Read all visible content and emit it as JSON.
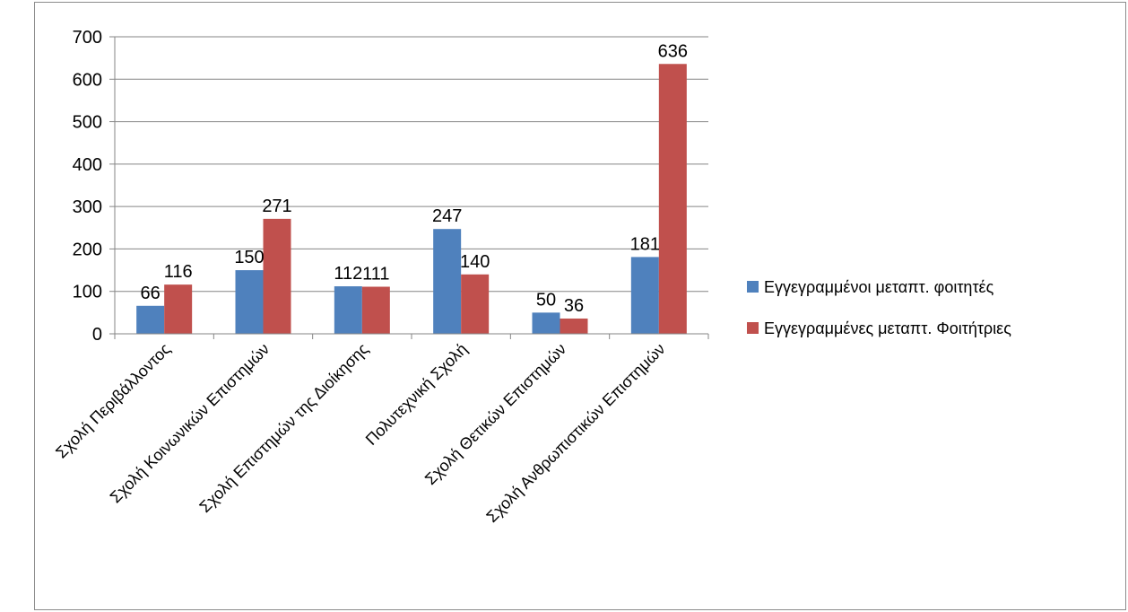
{
  "chart_data": {
    "type": "bar",
    "title": "",
    "xlabel": "",
    "ylabel": "",
    "ylim": [
      0,
      700
    ],
    "yticks": [
      0,
      100,
      200,
      300,
      400,
      500,
      600,
      700
    ],
    "grid": true,
    "legend_position": "right",
    "categories": [
      "Σχολή Περιβάλλοντος",
      "Σχολή Κοινωνικών Επιστημών",
      "Σχολή Επιστημών της Διοίκησης",
      "Πολυτεχνική Σχολή",
      "Σχολή Θετικών Επιστημών",
      "Σχολή Ανθρωπιστικών Επιστημών"
    ],
    "series": [
      {
        "name": "Εγγεγραμμένοι μεταπτ. φοιτητές",
        "color": "#4f81bd",
        "values": [
          66,
          150,
          112,
          247,
          50,
          181
        ]
      },
      {
        "name": "Εγγεγραμμένες μεταπτ. Φοιτήτριες",
        "color": "#c0504d",
        "values": [
          116,
          271,
          111,
          140,
          36,
          636
        ]
      }
    ]
  }
}
